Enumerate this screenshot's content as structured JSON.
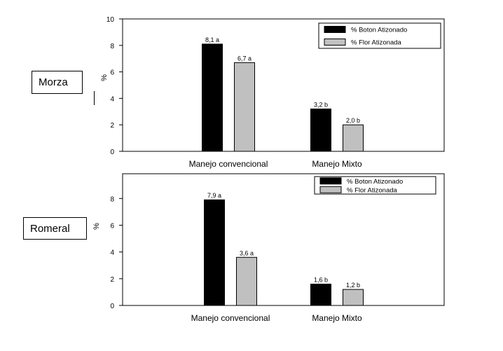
{
  "chart_data": [
    {
      "type": "bar",
      "panel": "Morza",
      "categories": [
        "Manejo convencional",
        "Manejo Mixto"
      ],
      "series": [
        {
          "name": "%  Boton Atizonado",
          "color": "#000000",
          "values": [
            8.1,
            3.2
          ],
          "labels": [
            "8,1 a",
            "3,2 b"
          ]
        },
        {
          "name": "% Flor Atizonada",
          "color": "#c0c0c0",
          "values": [
            6.7,
            2.0
          ],
          "labels": [
            "6,7 a",
            "2,0 b"
          ]
        }
      ],
      "ylabel": "%",
      "ylim": [
        0,
        10
      ],
      "yticks": [
        "0",
        "2",
        "4",
        "6",
        "8",
        "10"
      ],
      "legend": "top-right"
    },
    {
      "type": "bar",
      "panel": "Romeral",
      "categories": [
        "Manejo convencional",
        "Manejo Mixto"
      ],
      "series": [
        {
          "name": "% Boton Atizonado",
          "color": "#000000",
          "values": [
            7.9,
            1.6
          ],
          "labels": [
            "7,9 a",
            "1,6 b"
          ]
        },
        {
          "name": "% Flor Atizonada",
          "color": "#c0c0c0",
          "values": [
            3.6,
            1.2
          ],
          "labels": [
            "3,6 a",
            "1,2 b"
          ]
        }
      ],
      "ylabel": "%",
      "ylim": [
        0,
        10
      ],
      "yticks": [
        "0",
        "2",
        "4",
        "6",
        "8"
      ],
      "legend": "top-right"
    }
  ],
  "labels": {
    "morza": "Morza",
    "romeral": "Romeral"
  }
}
